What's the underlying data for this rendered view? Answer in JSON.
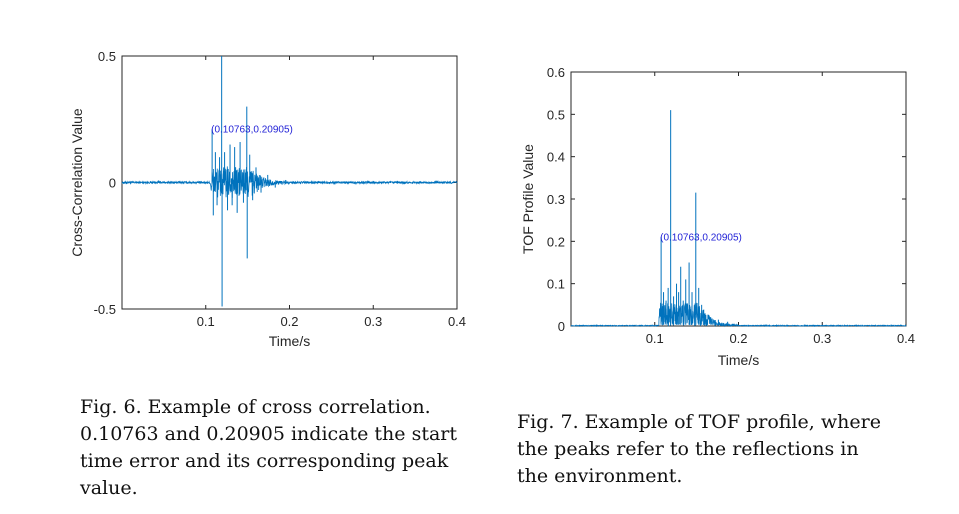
{
  "chart_data": [
    {
      "type": "line",
      "xlabel": "Time/s",
      "ylabel": "Cross-Correlation Value",
      "xlim": [
        0,
        0.4
      ],
      "ylim": [
        -0.5,
        0.5
      ],
      "xticks": [
        "0.1",
        "0.2",
        "0.3",
        "0.4"
      ],
      "yticks": [
        "-0.5",
        "0",
        "0.5"
      ],
      "grid": false,
      "series_color": "#0072bd",
      "annotation": {
        "text": "(0.10763,0.20905)",
        "x": 0.10763,
        "y": 0.20905
      },
      "peaks": [
        {
          "x": 0.1076,
          "y": 0.21
        },
        {
          "x": 0.109,
          "y": -0.13
        },
        {
          "x": 0.1115,
          "y": 0.12
        },
        {
          "x": 0.1135,
          "y": -0.09
        },
        {
          "x": 0.1165,
          "y": 0.1
        },
        {
          "x": 0.119,
          "y": 0.5
        },
        {
          "x": 0.1195,
          "y": -0.49
        },
        {
          "x": 0.1225,
          "y": 0.12
        },
        {
          "x": 0.126,
          "y": -0.11
        },
        {
          "x": 0.129,
          "y": 0.15
        },
        {
          "x": 0.1315,
          "y": -0.09
        },
        {
          "x": 0.1345,
          "y": 0.14
        },
        {
          "x": 0.1375,
          "y": -0.12
        },
        {
          "x": 0.141,
          "y": 0.16
        },
        {
          "x": 0.145,
          "y": -0.08
        },
        {
          "x": 0.149,
          "y": 0.3
        },
        {
          "x": 0.1495,
          "y": -0.3
        },
        {
          "x": 0.1525,
          "y": 0.11
        },
        {
          "x": 0.156,
          "y": -0.07
        },
        {
          "x": 0.16,
          "y": 0.06
        },
        {
          "x": 0.166,
          "y": -0.04
        },
        {
          "x": 0.174,
          "y": 0.03
        },
        {
          "x": 0.183,
          "y": -0.02
        },
        {
          "x": 0.195,
          "y": 0.01
        }
      ]
    },
    {
      "type": "line",
      "xlabel": "Time/s",
      "ylabel": "TOF Profile Value",
      "xlim": [
        0,
        0.4
      ],
      "ylim": [
        0,
        0.6
      ],
      "xticks": [
        "0.1",
        "0.2",
        "0.3",
        "0.4"
      ],
      "yticks": [
        "0",
        "0.1",
        "0.2",
        "0.3",
        "0.4",
        "0.5",
        "0.6"
      ],
      "grid": false,
      "series_color": "#0072bd",
      "annotation": {
        "text": "(0.10763,0.20905)",
        "x": 0.10763,
        "y": 0.20905
      },
      "peaks": [
        {
          "x": 0.1076,
          "y": 0.21
        },
        {
          "x": 0.1105,
          "y": 0.08
        },
        {
          "x": 0.1135,
          "y": 0.06
        },
        {
          "x": 0.116,
          "y": 0.09
        },
        {
          "x": 0.119,
          "y": 0.51
        },
        {
          "x": 0.1225,
          "y": 0.07
        },
        {
          "x": 0.126,
          "y": 0.1
        },
        {
          "x": 0.1285,
          "y": 0.08
        },
        {
          "x": 0.131,
          "y": 0.14
        },
        {
          "x": 0.134,
          "y": 0.06
        },
        {
          "x": 0.137,
          "y": 0.11
        },
        {
          "x": 0.141,
          "y": 0.15
        },
        {
          "x": 0.1445,
          "y": 0.08
        },
        {
          "x": 0.149,
          "y": 0.315
        },
        {
          "x": 0.1525,
          "y": 0.09
        },
        {
          "x": 0.156,
          "y": 0.05
        },
        {
          "x": 0.16,
          "y": 0.03
        },
        {
          "x": 0.167,
          "y": 0.02
        },
        {
          "x": 0.176,
          "y": 0.015
        },
        {
          "x": 0.187,
          "y": 0.01
        }
      ]
    }
  ],
  "captions": {
    "fig6": [
      "Fig. 6.  Example of cross correlation.",
      "0.10763 and 0.20905 indicate the start",
      "time error and its corresponding peak",
      "value."
    ],
    "fig7": [
      "Fig. 7.  Example of TOF profile, where",
      "the peaks refer to the reflections in",
      "the environment."
    ]
  }
}
